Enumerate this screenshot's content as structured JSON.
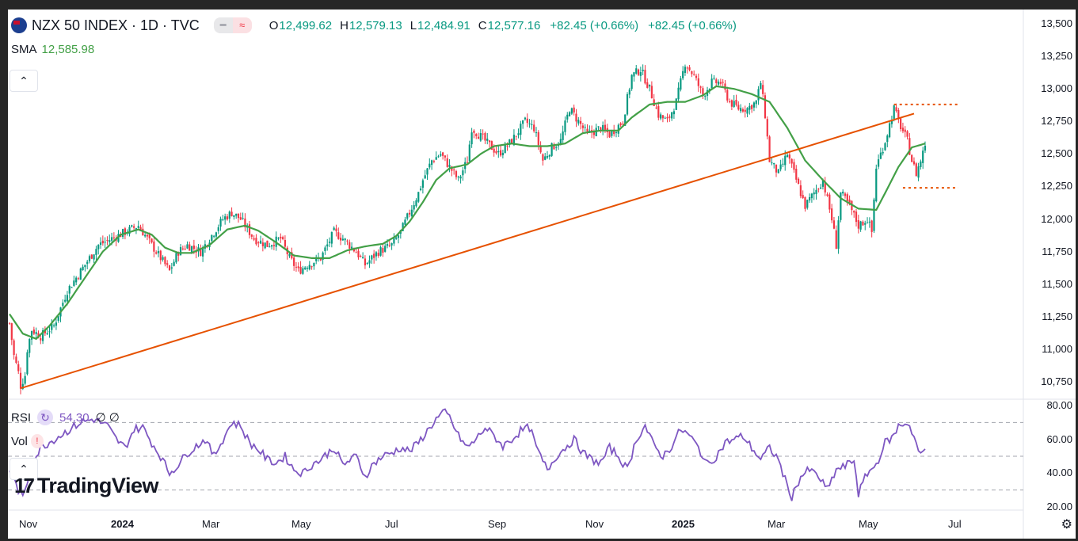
{
  "header": {
    "title": "NZX 50 INDEX · 1D · TVC",
    "ohlc": [
      {
        "key": "O",
        "value": "12,499.62"
      },
      {
        "key": "H",
        "value": "12,579.13"
      },
      {
        "key": "L",
        "value": "12,484.91"
      },
      {
        "key": "C",
        "value": "12,577.16"
      }
    ],
    "change_1": "+82.45 (+0.66%)",
    "change_2": "+82.45 (+0.66%)"
  },
  "sma": {
    "label": "SMA",
    "value": "12,585.98"
  },
  "rsi": {
    "label": "RSI",
    "value": "54.30",
    "extra": "∅ ∅"
  },
  "vol": {
    "label": "Vol"
  },
  "logo": {
    "text": "TradingView"
  },
  "colors": {
    "up": "#089981",
    "down": "#f23645",
    "sma": "#43a047",
    "rsi": "#7e57c2",
    "trendline": "#e65100"
  },
  "chart_data": {
    "type": "candlestick",
    "price_axis": {
      "ticks": [
        "13,500",
        "13,250",
        "13,000",
        "12,750",
        "12,500",
        "12,250",
        "12,000",
        "11,750",
        "11,500",
        "11,250",
        "11,000",
        "10,750"
      ],
      "range": [
        10650,
        13600
      ]
    },
    "rsi_axis": {
      "ticks": [
        "80.00",
        "60.00",
        "40.00",
        "20.00"
      ],
      "range": [
        18,
        82
      ],
      "bands": [
        70,
        50,
        30
      ]
    },
    "time_axis": {
      "ticks": [
        "Nov",
        "2024",
        "Mar",
        "May",
        "Jul",
        "Sep",
        "Nov",
        "2025",
        "Mar",
        "May",
        "Jul"
      ],
      "bold": [
        "2024",
        "2025"
      ]
    },
    "price_path": [
      [
        0,
        11200
      ],
      [
        2,
        10950
      ],
      [
        4,
        10820
      ],
      [
        5,
        10720
      ],
      [
        7,
        10800
      ],
      [
        8,
        11000
      ],
      [
        10,
        11150
      ],
      [
        14,
        11100
      ],
      [
        20,
        11180
      ],
      [
        26,
        11450
      ],
      [
        32,
        11600
      ],
      [
        40,
        11800
      ],
      [
        46,
        11850
      ],
      [
        52,
        11900
      ],
      [
        58,
        11950
      ],
      [
        62,
        11850
      ],
      [
        68,
        11700
      ],
      [
        72,
        11600
      ],
      [
        76,
        11750
      ],
      [
        80,
        11800
      ],
      [
        86,
        11750
      ],
      [
        90,
        11850
      ],
      [
        96,
        12000
      ],
      [
        100,
        12050
      ],
      [
        104,
        12000
      ],
      [
        110,
        11850
      ],
      [
        116,
        11800
      ],
      [
        122,
        11850
      ],
      [
        126,
        11700
      ],
      [
        130,
        11600
      ],
      [
        134,
        11650
      ],
      [
        140,
        11700
      ],
      [
        146,
        11900
      ],
      [
        150,
        11850
      ],
      [
        156,
        11750
      ],
      [
        160,
        11650
      ],
      [
        166,
        11750
      ],
      [
        172,
        11800
      ],
      [
        176,
        11900
      ],
      [
        180,
        12050
      ],
      [
        184,
        12200
      ],
      [
        186,
        12300
      ],
      [
        190,
        12450
      ],
      [
        194,
        12500
      ],
      [
        198,
        12400
      ],
      [
        202,
        12300
      ],
      [
        206,
        12450
      ],
      [
        208,
        12700
      ],
      [
        214,
        12600
      ],
      [
        220,
        12500
      ],
      [
        226,
        12600
      ],
      [
        232,
        12750
      ],
      [
        236,
        12700
      ],
      [
        240,
        12450
      ],
      [
        244,
        12550
      ],
      [
        248,
        12600
      ],
      [
        252,
        12850
      ],
      [
        256,
        12750
      ],
      [
        260,
        12650
      ],
      [
        266,
        12700
      ],
      [
        270,
        12650
      ],
      [
        276,
        12750
      ],
      [
        280,
        13100
      ],
      [
        284,
        13150
      ],
      [
        288,
        13000
      ],
      [
        292,
        12800
      ],
      [
        296,
        12750
      ],
      [
        300,
        12900
      ],
      [
        304,
        13200
      ],
      [
        308,
        13100
      ],
      [
        312,
        12950
      ],
      [
        316,
        13050
      ],
      [
        320,
        13050
      ],
      [
        324,
        12900
      ],
      [
        328,
        12850
      ],
      [
        332,
        12850
      ],
      [
        336,
        12900
      ],
      [
        338,
        13050
      ],
      [
        340,
        12800
      ],
      [
        342,
        12450
      ],
      [
        346,
        12350
      ],
      [
        350,
        12500
      ],
      [
        354,
        12300
      ],
      [
        358,
        12100
      ],
      [
        362,
        12200
      ],
      [
        366,
        12300
      ],
      [
        370,
        12000
      ],
      [
        372,
        11800
      ],
      [
        374,
        12200
      ],
      [
        378,
        12100
      ],
      [
        382,
        11950
      ],
      [
        386,
        12000
      ],
      [
        388,
        11900
      ],
      [
        390,
        12400
      ],
      [
        394,
        12600
      ],
      [
        398,
        12850
      ],
      [
        400,
        12750
      ],
      [
        404,
        12600
      ],
      [
        406,
        12450
      ],
      [
        408,
        12350
      ],
      [
        410,
        12450
      ],
      [
        412,
        12577
      ]
    ],
    "sma_path": [
      [
        0,
        11270
      ],
      [
        6,
        11120
      ],
      [
        12,
        11080
      ],
      [
        18,
        11180
      ],
      [
        26,
        11350
      ],
      [
        34,
        11550
      ],
      [
        42,
        11750
      ],
      [
        50,
        11880
      ],
      [
        58,
        11920
      ],
      [
        64,
        11880
      ],
      [
        70,
        11780
      ],
      [
        76,
        11740
      ],
      [
        82,
        11740
      ],
      [
        90,
        11800
      ],
      [
        98,
        11920
      ],
      [
        106,
        11950
      ],
      [
        112,
        11910
      ],
      [
        120,
        11820
      ],
      [
        128,
        11720
      ],
      [
        136,
        11700
      ],
      [
        144,
        11700
      ],
      [
        152,
        11760
      ],
      [
        160,
        11790
      ],
      [
        168,
        11810
      ],
      [
        174,
        11870
      ],
      [
        180,
        11980
      ],
      [
        186,
        12130
      ],
      [
        192,
        12300
      ],
      [
        198,
        12390
      ],
      [
        206,
        12420
      ],
      [
        212,
        12500
      ],
      [
        218,
        12560
      ],
      [
        226,
        12580
      ],
      [
        234,
        12560
      ],
      [
        242,
        12560
      ],
      [
        250,
        12580
      ],
      [
        258,
        12660
      ],
      [
        266,
        12680
      ],
      [
        274,
        12680
      ],
      [
        280,
        12780
      ],
      [
        288,
        12880
      ],
      [
        296,
        12900
      ],
      [
        304,
        12900
      ],
      [
        312,
        12950
      ],
      [
        318,
        13020
      ],
      [
        326,
        13000
      ],
      [
        334,
        12960
      ],
      [
        342,
        12900
      ],
      [
        350,
        12700
      ],
      [
        358,
        12450
      ],
      [
        366,
        12300
      ],
      [
        374,
        12160
      ],
      [
        382,
        12080
      ],
      [
        390,
        12070
      ],
      [
        394,
        12200
      ],
      [
        400,
        12400
      ],
      [
        406,
        12550
      ],
      [
        412,
        12580
      ]
    ],
    "rsi_path": [
      [
        0,
        42
      ],
      [
        4,
        30
      ],
      [
        6,
        25
      ],
      [
        10,
        45
      ],
      [
        14,
        55
      ],
      [
        20,
        60
      ],
      [
        26,
        65
      ],
      [
        32,
        70
      ],
      [
        38,
        72
      ],
      [
        44,
        68
      ],
      [
        48,
        60
      ],
      [
        52,
        55
      ],
      [
        56,
        66
      ],
      [
        60,
        67
      ],
      [
        64,
        58
      ],
      [
        68,
        50
      ],
      [
        72,
        40
      ],
      [
        76,
        45
      ],
      [
        80,
        52
      ],
      [
        84,
        56
      ],
      [
        88,
        60
      ],
      [
        92,
        50
      ],
      [
        96,
        60
      ],
      [
        100,
        70
      ],
      [
        104,
        68
      ],
      [
        108,
        58
      ],
      [
        112,
        54
      ],
      [
        116,
        48
      ],
      [
        120,
        46
      ],
      [
        124,
        50
      ],
      [
        128,
        42
      ],
      [
        132,
        40
      ],
      [
        136,
        45
      ],
      [
        140,
        48
      ],
      [
        146,
        55
      ],
      [
        150,
        45
      ],
      [
        156,
        50
      ],
      [
        160,
        38
      ],
      [
        164,
        46
      ],
      [
        168,
        50
      ],
      [
        172,
        52
      ],
      [
        176,
        55
      ],
      [
        180,
        53
      ],
      [
        184,
        58
      ],
      [
        188,
        65
      ],
      [
        192,
        72
      ],
      [
        196,
        76
      ],
      [
        198,
        73
      ],
      [
        202,
        62
      ],
      [
        206,
        55
      ],
      [
        210,
        60
      ],
      [
        214,
        67
      ],
      [
        218,
        62
      ],
      [
        222,
        56
      ],
      [
        226,
        60
      ],
      [
        230,
        65
      ],
      [
        234,
        67
      ],
      [
        238,
        52
      ],
      [
        242,
        42
      ],
      [
        246,
        50
      ],
      [
        250,
        55
      ],
      [
        254,
        60
      ],
      [
        258,
        52
      ],
      [
        262,
        48
      ],
      [
        266,
        46
      ],
      [
        270,
        55
      ],
      [
        274,
        50
      ],
      [
        278,
        42
      ],
      [
        282,
        60
      ],
      [
        286,
        68
      ],
      [
        290,
        56
      ],
      [
        294,
        50
      ],
      [
        298,
        56
      ],
      [
        302,
        66
      ],
      [
        306,
        62
      ],
      [
        310,
        55
      ],
      [
        314,
        45
      ],
      [
        318,
        50
      ],
      [
        322,
        58
      ],
      [
        326,
        60
      ],
      [
        330,
        62
      ],
      [
        334,
        55
      ],
      [
        338,
        48
      ],
      [
        342,
        55
      ],
      [
        346,
        48
      ],
      [
        350,
        32
      ],
      [
        352,
        26
      ],
      [
        356,
        38
      ],
      [
        360,
        42
      ],
      [
        364,
        38
      ],
      [
        368,
        30
      ],
      [
        372,
        42
      ],
      [
        376,
        44
      ],
      [
        380,
        48
      ],
      [
        382,
        28
      ],
      [
        386,
        40
      ],
      [
        390,
        45
      ],
      [
        394,
        58
      ],
      [
        398,
        62
      ],
      [
        400,
        68
      ],
      [
        404,
        70
      ],
      [
        406,
        65
      ],
      [
        410,
        50
      ],
      [
        412,
        54
      ]
    ]
  }
}
